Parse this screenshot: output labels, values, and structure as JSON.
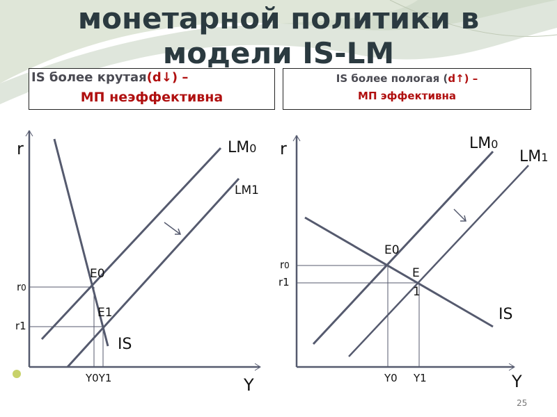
{
  "slide": {
    "title_line1": "монетарной политики в",
    "title_line2": "модели IS-LM",
    "page_number": "25",
    "accent_colors": {
      "title": "#2b3a40",
      "highlight": "#b01010",
      "lines": "#555a6e",
      "bullet": "#c8d26a"
    }
  },
  "left_box": {
    "part1": "IS более крутая",
    "part2": "(d↓) –",
    "part3": "МП неэффективна"
  },
  "right_box": {
    "part1": "IS более пологая (",
    "part2": "d↑) –",
    "part3": "МП эффективна"
  },
  "left_diagram": {
    "y_axis": "r",
    "x_axis": "Y",
    "lm0": "LM",
    "lm0_sub": "0",
    "lm1": "LM1",
    "is": "IS",
    "e0": "E0",
    "e1": "E1",
    "r0": "r",
    "r0_sub": "0",
    "r1": "r1",
    "y0y1": "Y0Y1"
  },
  "right_diagram": {
    "y_axis": "r",
    "x_axis": "Y",
    "lm0": "LM",
    "lm0_sub": "0",
    "lm1": "LM",
    "lm1_sub": "1",
    "is": "IS",
    "e0": "E0",
    "e1a": "E",
    "e1b": "1",
    "r0": "r",
    "r0_sub": "0",
    "r1": "r1",
    "y0": "Y0",
    "y1": "Y1"
  }
}
